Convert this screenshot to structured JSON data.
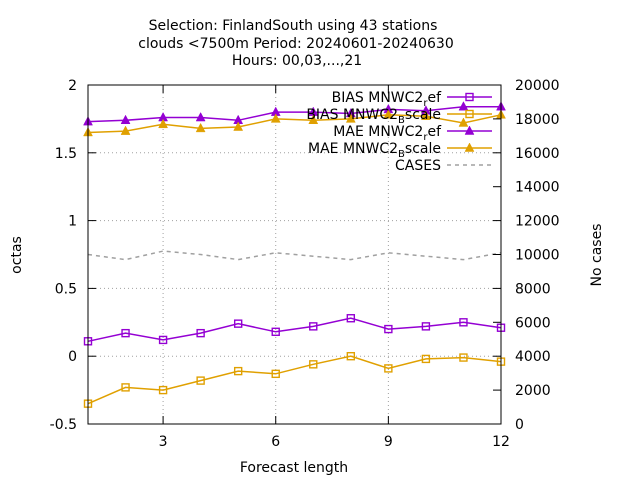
{
  "chart_data": {
    "type": "line",
    "title": {
      "line1": "Selection: FinlandSouth using    43 stations",
      "line2": "clouds <7500m   Period: 20240601-20240630",
      "line3": "Hours: 00,03,...,21"
    },
    "xlabel": "Forecast length",
    "ylabel": "octas",
    "y2label": "No cases",
    "xlim": [
      1,
      12
    ],
    "ylim": [
      -0.5,
      2
    ],
    "y2lim": [
      0,
      20000
    ],
    "xticks": [
      "3",
      "6",
      "9",
      "12"
    ],
    "yticks": [
      "-0.5",
      "0",
      "0.5",
      "1",
      "1.5",
      "2"
    ],
    "y2ticks": [
      "0",
      "2000",
      "4000",
      "6000",
      "8000",
      "10000",
      "12000",
      "14000",
      "16000",
      "18000",
      "20000"
    ],
    "grid": true,
    "legend_position": "top-right",
    "x": [
      1,
      2,
      3,
      4,
      5,
      6,
      7,
      8,
      9,
      10,
      11,
      12
    ],
    "series": [
      {
        "legend_main": "BIAS MNWC2",
        "legend_sub": "r",
        "legend_tail": "ef",
        "axis": "y",
        "color": "#9400d3",
        "marker": "square",
        "values": [
          0.11,
          0.17,
          0.12,
          0.17,
          0.24,
          0.18,
          0.22,
          0.28,
          0.2,
          0.22,
          0.25,
          0.21
        ]
      },
      {
        "legend_main": "BIAS MNWC2",
        "legend_sub": "B",
        "legend_tail": "scale",
        "axis": "y",
        "color": "#e0a000",
        "marker": "square",
        "values": [
          -0.35,
          -0.23,
          -0.25,
          -0.18,
          -0.11,
          -0.13,
          -0.06,
          0.0,
          -0.09,
          -0.02,
          -0.01,
          -0.04
        ]
      },
      {
        "legend_main": "MAE MNWC2",
        "legend_sub": "r",
        "legend_tail": "ef",
        "axis": "y",
        "color": "#9400d3",
        "marker": "triangle",
        "values": [
          1.73,
          1.74,
          1.76,
          1.76,
          1.74,
          1.8,
          1.8,
          1.79,
          1.82,
          1.81,
          1.84,
          1.84
        ]
      },
      {
        "legend_main": "MAE MNWC2",
        "legend_sub": "B",
        "legend_tail": "scale",
        "axis": "y",
        "color": "#e0a000",
        "marker": "triangle",
        "values": [
          1.65,
          1.66,
          1.71,
          1.68,
          1.69,
          1.75,
          1.74,
          1.75,
          1.78,
          1.77,
          1.72,
          1.78
        ]
      },
      {
        "legend_main": "CASES",
        "legend_sub": "",
        "legend_tail": "",
        "axis": "y2",
        "color": "#a0a0a0",
        "marker": "none",
        "dashed": true,
        "values": [
          10000,
          9700,
          10200,
          10000,
          9700,
          10100,
          9900,
          9700,
          10100,
          9900,
          9700,
          10100
        ]
      }
    ]
  }
}
